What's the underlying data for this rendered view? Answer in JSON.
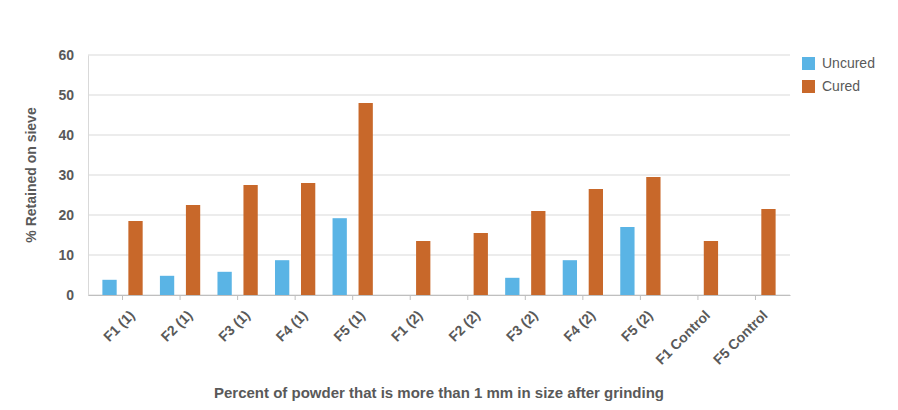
{
  "chart_data": {
    "type": "bar",
    "x_label": "Percent of powder that is more than 1 mm in size after grinding",
    "y_label": "% Retained on sieve",
    "categories": [
      "F1 (1)",
      "F2 (1)",
      "F3 (1)",
      "F4 (1)",
      "F5 (1)",
      "F1 (2)",
      "F2 (2)",
      "F3 (2)",
      "F4 (2)",
      "F5 (2)",
      "F1 Control",
      "F5 Control"
    ],
    "series": [
      {
        "name": "Uncured",
        "color": "#5ab4e5",
        "values": [
          3.8,
          4.8,
          5.8,
          8.7,
          19.2,
          0,
          0,
          4.3,
          8.7,
          17,
          0,
          0
        ]
      },
      {
        "name": "Cured",
        "color": "#c8682a",
        "values": [
          18.5,
          22.5,
          27.5,
          28,
          48,
          13.5,
          15.5,
          21,
          26.5,
          29.5,
          13.5,
          21.5
        ]
      }
    ],
    "ylim": [
      0,
      60
    ],
    "yticks": [
      0,
      10,
      20,
      30,
      40,
      50,
      60
    ],
    "grid": true,
    "legend": "right"
  }
}
